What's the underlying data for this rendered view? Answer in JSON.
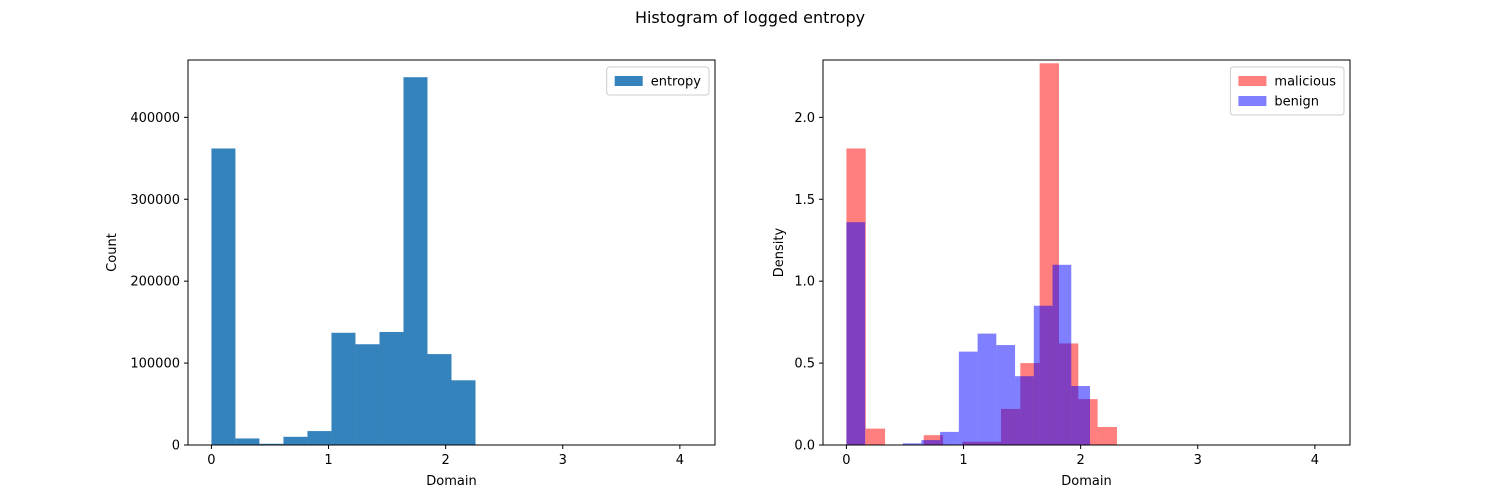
{
  "figure": {
    "suptitle": "Histogram of logged entropy"
  },
  "chart_data": [
    {
      "type": "bar",
      "subtype": "histogram",
      "xlabel": "Domain",
      "ylabel": "Count",
      "xlim": [
        -0.2,
        4.3
      ],
      "ylim": [
        0,
        470000
      ],
      "xticks": [
        0,
        1,
        2,
        3,
        4
      ],
      "yticks": [
        0,
        100000,
        200000,
        300000,
        400000
      ],
      "legend_position": "top-right",
      "grid": false,
      "series": [
        {
          "name": "entropy",
          "color": "#3583bd",
          "alpha": 1.0,
          "bin_edges": [
            0.0,
            0.205,
            0.41,
            0.615,
            0.82,
            1.025,
            1.23,
            1.435,
            1.64,
            1.845,
            2.05,
            2.255
          ],
          "values": [
            362000,
            8000,
            1500,
            10000,
            17000,
            137000,
            123000,
            138000,
            449000,
            111000,
            79000
          ]
        }
      ]
    },
    {
      "type": "bar",
      "subtype": "histogram",
      "xlabel": "Domain",
      "ylabel": "Density",
      "xlim": [
        -0.2,
        4.3
      ],
      "ylim": [
        0,
        2.35
      ],
      "xticks": [
        0,
        1,
        2,
        3,
        4
      ],
      "yticks": [
        0.0,
        0.5,
        1.0,
        1.5,
        2.0
      ],
      "legend_position": "top-right",
      "grid": false,
      "series": [
        {
          "name": "malicious",
          "color": "#ff0000",
          "alpha": 0.5,
          "bin_edges": [
            0.0,
            0.165,
            0.33,
            0.495,
            0.66,
            0.825,
            0.99,
            1.155,
            1.32,
            1.485,
            1.65,
            1.815,
            1.98,
            2.145,
            2.31
          ],
          "values": [
            1.81,
            0.1,
            0.0,
            0.0,
            0.06,
            0.0,
            0.02,
            0.02,
            0.22,
            0.5,
            2.33,
            0.62,
            0.28,
            0.11
          ]
        },
        {
          "name": "benign",
          "color": "#0000ff",
          "alpha": 0.5,
          "bin_edges": [
            0.0,
            0.16,
            0.32,
            0.48,
            0.64,
            0.8,
            0.96,
            1.12,
            1.28,
            1.44,
            1.6,
            1.76,
            1.92,
            2.08
          ],
          "values": [
            1.36,
            0.0,
            0.0,
            0.01,
            0.03,
            0.08,
            0.57,
            0.68,
            0.61,
            0.42,
            0.85,
            1.1,
            0.36
          ]
        }
      ]
    }
  ]
}
